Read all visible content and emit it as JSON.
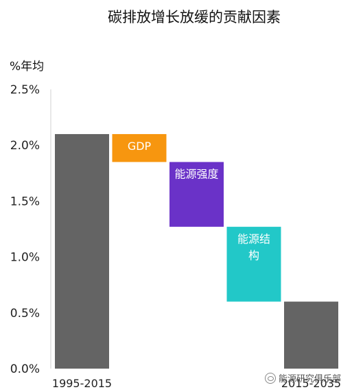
{
  "chart_data": {
    "type": "bar",
    "subtype": "waterfall",
    "title": "碳排放增长放缓的贡献因素",
    "ylabel": "%年均",
    "ylim": [
      0,
      2.5
    ],
    "yticks": [
      "0.0%",
      "0.5%",
      "1.0%",
      "1.5%",
      "2.0%",
      "2.5%"
    ],
    "ytick_values": [
      0,
      0.5,
      1.0,
      1.5,
      2.0,
      2.5
    ],
    "grid": false,
    "legend": "none",
    "bars": [
      {
        "category": "1995-2015",
        "label": "",
        "start": 0.0,
        "end": 2.1,
        "color": "#646464"
      },
      {
        "category": "",
        "label": "GDP",
        "start": 1.85,
        "end": 2.1,
        "color": "#F7960F"
      },
      {
        "category": "",
        "label": "能源强度",
        "start": 1.27,
        "end": 1.85,
        "color": "#6A32C8"
      },
      {
        "category": "",
        "label": "能源结构",
        "start": 0.6,
        "end": 1.27,
        "color": "#22C8C8"
      },
      {
        "category": "2015-2035",
        "label": "",
        "start": 0.0,
        "end": 0.6,
        "color": "#646464"
      }
    ]
  },
  "watermark": "能源研究俱乐部"
}
